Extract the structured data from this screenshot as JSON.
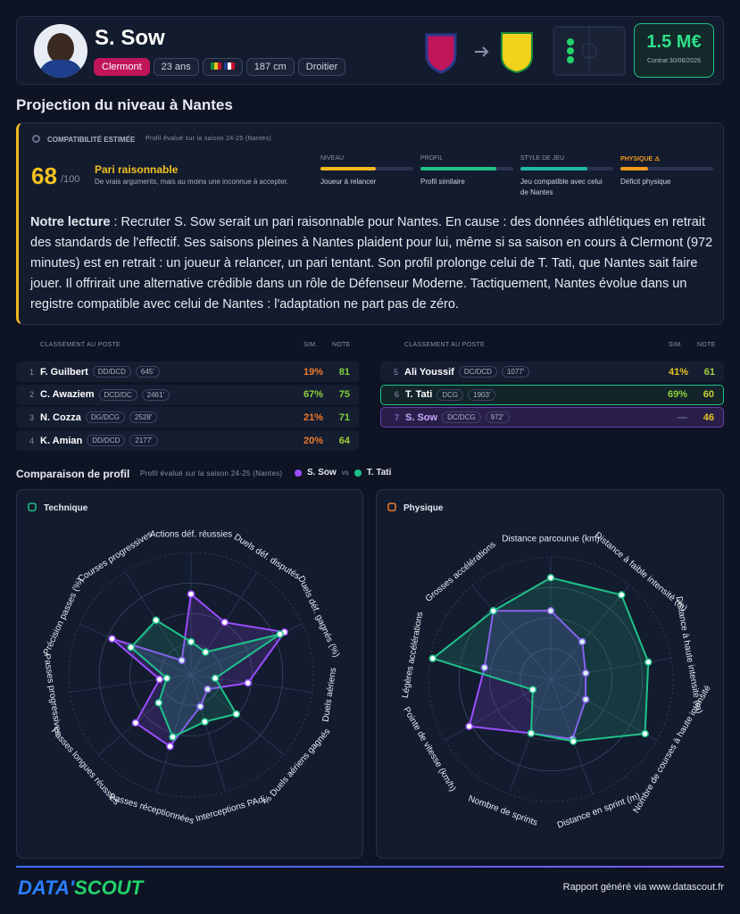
{
  "header": {
    "name": "S. Sow",
    "club": "Clermont",
    "age": "23 ans",
    "height": "187 cm",
    "foot": "Droitier",
    "value": "1.5 M€",
    "contract": "Contrat 30/06/2026"
  },
  "projection": {
    "title": "Projection du niveau à Nantes",
    "label": "COMPATIBILITÉ ESTIMÉE",
    "note": "Profil évalué sur la saison 24-25 (Nantes)",
    "score": 68,
    "score_max": "/100",
    "verdict": "Pari raisonnable",
    "verdict_text": "De vrais arguments, mais au moins une inconnue à accepter.",
    "criteria": [
      {
        "name": "NIVEAU",
        "text": "Joueur à relancer",
        "level": 60,
        "color": "#f2b71f"
      },
      {
        "name": "PROFIL",
        "text": "Profil similaire",
        "level": 82,
        "color": "#1fc28a"
      },
      {
        "name": "STYLE DE JEU",
        "text": "Jeu compatible avec celui de Nantes",
        "level": 72,
        "color": "#1fb8a8"
      },
      {
        "name": "PHYSIQUE ⚠",
        "text": "Déficit physique",
        "level": 30,
        "color": "#f09a1a"
      }
    ],
    "reading_label": "Notre lecture",
    "reading": " : Recruter S. Sow serait un pari raisonnable pour Nantes. En cause : des données athlétiques en retrait des standards de l'effectif. Ses saisons pleines à Nantes plaident pour lui, même si sa saison en cours à Clermont (972 minutes) est en retrait : un joueur à relancer, un pari tentant. Son profil prolonge celui de T. Tati, que Nantes sait faire jouer. Il offrirait une alternative crédible dans un rôle de Défenseur Moderne. Tactiquement, Nantes évolue dans un registre compatible avec celui de Nantes : l'adaptation ne part pas de zéro."
  },
  "ranking": [
    {
      "headers": [
        "CLASSEMENT AU POSTE",
        "SIM.",
        "NOTE"
      ],
      "rows": [
        {
          "rank": 1,
          "name": "F. Guilbert",
          "position": "DD/DCD",
          "minutes": "645'",
          "sim": "19%",
          "note": 81,
          "sim_color": "#f07a2a",
          "note_color": "#7fd23a"
        },
        {
          "rank": 2,
          "name": "C. Awaziem",
          "position": "DCD/DC",
          "minutes": "2461'",
          "sim": "67%",
          "note": 75,
          "sim_color": "#8fcf3a",
          "note_color": "#7fd23a"
        },
        {
          "rank": 3,
          "name": "N. Cozza",
          "position": "DG/DCG",
          "minutes": "2528'",
          "sim": "21%",
          "note": 71,
          "sim_color": "#f07a2a",
          "note_color": "#7fd23a"
        },
        {
          "rank": 4,
          "name": "K. Amian",
          "position": "DD/DCD",
          "minutes": "2177'",
          "sim": "20%",
          "note": 64,
          "sim_color": "#f07a2a",
          "note_color": "#9fd23a"
        }
      ]
    },
    {
      "headers": [
        "CLASSEMENT AU POSTE",
        "SIM.",
        "NOTE"
      ],
      "rows": [
        {
          "rank": 5,
          "name": "Ali Youssif",
          "position": "DC/DCD",
          "minutes": "1077'",
          "sim": "41%",
          "note": 61,
          "sim_color": "#e8c21f",
          "note_color": "#9fd23a"
        },
        {
          "rank": 6,
          "name": "T. Tati",
          "position": "DCG",
          "minutes": "1903'",
          "sim": "69%",
          "note": 60,
          "sim_color": "#8fcf3a",
          "note_color": "#c8d23a"
        },
        {
          "rank": 7,
          "name": "S. Sow",
          "position": "DC/DCG",
          "minutes": "972'",
          "sim": "—",
          "note": 46,
          "sim_color": "#6b7388",
          "note_color": "#e8c21f"
        }
      ]
    }
  ],
  "comparison": {
    "title": "Comparaison de profil",
    "note": "Profil évalué sur la saison 24-25 (Nantes)",
    "vs": "vs"
  },
  "chart_data": [
    {
      "type": "radar",
      "title": "Technique",
      "rlim": [
        0,
        100
      ],
      "rticks": [
        25,
        50,
        75,
        100
      ],
      "categories": [
        "Actions déf. réussies",
        "Duels déf. disputés",
        "Duels déf. gagnés (%)",
        "Duels aériens",
        "% Duels aériens gagnés",
        "Interceptions PAdj",
        "Passes réceptionnées",
        "Passes longues réussies",
        "Passes progressives",
        "Précision passes (%)",
        "Courses progressives"
      ],
      "series": [
        {
          "name": "S. Sow",
          "color": "#9b4dff",
          "values": [
            66,
            51,
            84,
            47,
            18,
            27,
            61,
            60,
            26,
            71,
            14
          ]
        },
        {
          "name": "T. Tati",
          "color": "#1fc28a",
          "values": [
            27,
            22,
            80,
            20,
            49,
            40,
            53,
            35,
            20,
            54,
            53
          ]
        }
      ]
    },
    {
      "type": "radar",
      "title": "Physique",
      "rlim": [
        0,
        100
      ],
      "rticks": [
        25,
        50,
        75,
        100
      ],
      "categories": [
        "Distance parcourue (km)",
        "Distance à faible intensité (m)",
        "Distance à haute intensité (m)",
        "Nombre de courses à haute intensité",
        "Distance en sprint (m)",
        "Nombre de sprints",
        "Pointe de vitesse (km/h)",
        "Légères accélérations",
        "Grosses accélérations"
      ],
      "series": [
        {
          "color": "#9b4dff",
          "values": [
            56,
            40,
            29,
            33,
            52,
            47,
            77,
            55,
            73
          ]
        },
        {
          "color": "#1fc28a",
          "values": [
            83,
            90,
            81,
            89,
            54,
            47,
            17,
            98,
            73
          ]
        }
      ]
    }
  ],
  "footer": {
    "logo_left": "DATA'",
    "logo_right": "SCOUT",
    "text": "Rapport généré via www.datascout.fr"
  }
}
